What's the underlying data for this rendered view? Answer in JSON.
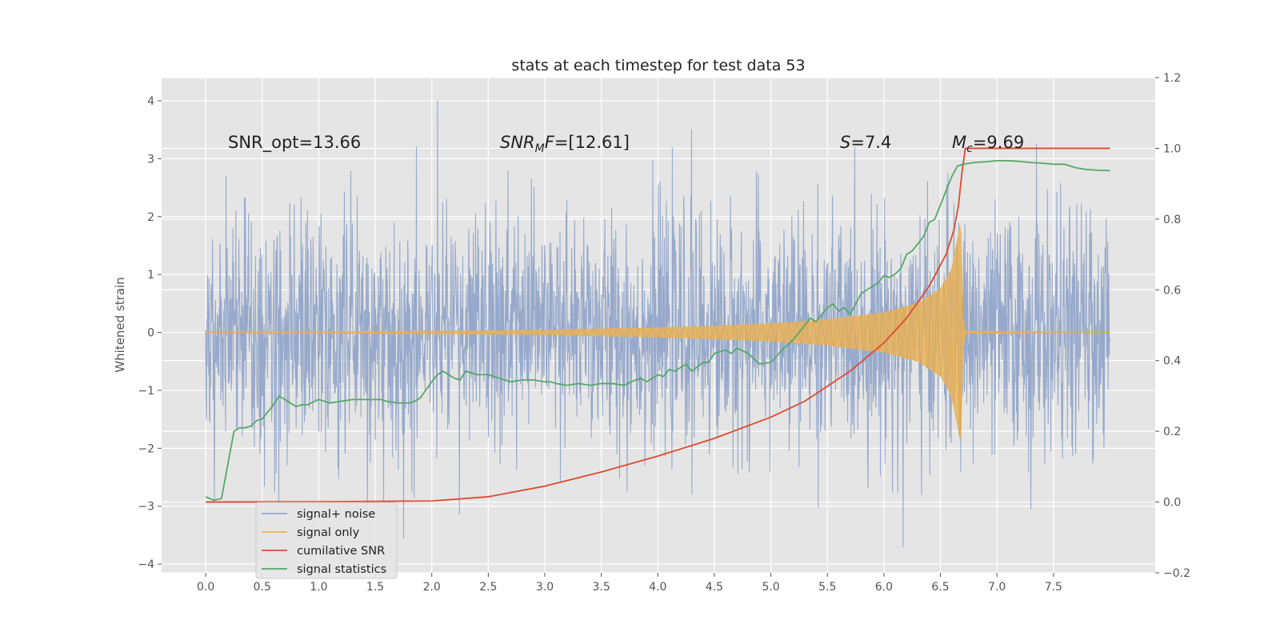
{
  "chart_data": {
    "type": "line",
    "title": "stats at each timestep for test data 53",
    "xlabel": "",
    "ylabel": "Whitened strain",
    "y2label": "",
    "xlim": [
      -0.39,
      8.4
    ],
    "ylim": [
      -4.15,
      4.4
    ],
    "y2lim": [
      -0.2,
      1.2
    ],
    "x_ticks": [
      0.0,
      0.5,
      1.0,
      1.5,
      2.0,
      2.5,
      3.0,
      3.5,
      4.0,
      4.5,
      5.0,
      5.5,
      6.0,
      6.5,
      7.0,
      7.5
    ],
    "x_tick_labels": [
      "0.0",
      "0.5",
      "1.0",
      "1.5",
      "2.0",
      "2.5",
      "3.0",
      "3.5",
      "4.0",
      "4.5",
      "5.0",
      "5.5",
      "6.0",
      "6.5",
      "7.0",
      "7.5"
    ],
    "y_ticks": [
      -4,
      -3,
      -2,
      -1,
      0,
      1,
      2,
      3,
      4
    ],
    "y_tick_labels": [
      "−4",
      "−3",
      "−2",
      "−1",
      "0",
      "1",
      "2",
      "3",
      "4"
    ],
    "y2_ticks": [
      -0.2,
      0.0,
      0.2,
      0.4,
      0.6,
      0.8,
      1.0,
      1.2
    ],
    "y2_tick_labels": [
      "−0.2",
      "0.0",
      "0.2",
      "0.4",
      "0.6",
      "0.8",
      "1.0",
      "1.2"
    ],
    "grid": true,
    "legend_position": "lower-left",
    "annotations": [
      {
        "kind": "plain",
        "text": "SNR_opt=13.66"
      },
      {
        "kind": "sub",
        "main": "SNR",
        "sub": "M",
        "rest": "F=[12.61]"
      },
      {
        "kind": "italic",
        "main": "S",
        "rest": "=7.4"
      },
      {
        "kind": "sub",
        "main": "M",
        "sub": "c",
        "rest": "=9.69"
      }
    ],
    "series": [
      {
        "name": "signal+ noise",
        "axis": "left",
        "color": "#97a9cb",
        "x_range": [
          0.0,
          8.0
        ],
        "y_range": [
          -3.7,
          4.0
        ],
        "peaks": [
          {
            "x": 2.05,
            "y": 4.0
          },
          {
            "x": 4.3,
            "y": 3.5
          },
          {
            "x": 7.35,
            "y": 3.25
          },
          {
            "x": 1.75,
            "y": -3.55
          },
          {
            "x": 6.17,
            "y": -3.7
          },
          {
            "x": 7.3,
            "y": -3.05
          }
        ]
      },
      {
        "name": "signal only",
        "axis": "left",
        "color": "#e8b45e",
        "x": [
          0.0,
          1.0,
          2.0,
          3.0,
          4.0,
          4.5,
          5.0,
          5.5,
          6.0,
          6.3,
          6.5,
          6.6,
          6.68,
          6.7,
          6.72,
          8.0
        ],
        "envelope": [
          0.01,
          0.01,
          0.02,
          0.04,
          0.08,
          0.11,
          0.15,
          0.22,
          0.34,
          0.5,
          0.75,
          1.1,
          1.9,
          0.3,
          0.02,
          0.0
        ]
      },
      {
        "name": "cumilative SNR",
        "axis": "right",
        "color": "#dd4b2f",
        "x": [
          0.0,
          1.0,
          2.0,
          2.5,
          3.0,
          3.5,
          4.0,
          4.5,
          5.0,
          5.3,
          5.7,
          6.0,
          6.2,
          6.4,
          6.55,
          6.62,
          6.66,
          6.69,
          6.72,
          7.0,
          7.5,
          8.0
        ],
        "y": [
          0.0,
          0.001,
          0.003,
          0.015,
          0.045,
          0.085,
          0.13,
          0.18,
          0.24,
          0.285,
          0.37,
          0.45,
          0.52,
          0.61,
          0.7,
          0.77,
          0.84,
          0.93,
          1.0,
          1.0,
          1.0,
          1.0
        ]
      },
      {
        "name": "signal statistics",
        "axis": "right",
        "color": "#55a868",
        "x": [
          0.0,
          0.07,
          0.14,
          0.25,
          0.3,
          0.35,
          0.4,
          0.45,
          0.5,
          0.6,
          0.65,
          0.7,
          0.8,
          0.85,
          0.9,
          1.0,
          1.05,
          1.1,
          1.2,
          1.3,
          1.4,
          1.5,
          1.55,
          1.6,
          1.7,
          1.8,
          1.85,
          1.9,
          2.0,
          2.05,
          2.1,
          2.2,
          2.25,
          2.3,
          2.4,
          2.5,
          2.6,
          2.7,
          2.8,
          2.9,
          3.0,
          3.05,
          3.1,
          3.2,
          3.3,
          3.4,
          3.5,
          3.6,
          3.7,
          3.8,
          3.85,
          3.9,
          4.0,
          4.05,
          4.1,
          4.15,
          4.25,
          4.3,
          4.4,
          4.45,
          4.5,
          4.6,
          4.65,
          4.7,
          4.8,
          4.9,
          5.0,
          5.1,
          5.2,
          5.3,
          5.35,
          5.4,
          5.5,
          5.55,
          5.6,
          5.65,
          5.7,
          5.8,
          5.85,
          5.9,
          5.95,
          6.0,
          6.05,
          6.1,
          6.15,
          6.2,
          6.25,
          6.3,
          6.35,
          6.4,
          6.45,
          6.5,
          6.55,
          6.6,
          6.65,
          6.7,
          6.8,
          6.9,
          7.0,
          7.1,
          7.2,
          7.3,
          7.4,
          7.5,
          7.6,
          7.7,
          7.8,
          7.9,
          8.0
        ],
        "y": [
          0.015,
          0.005,
          0.01,
          0.2,
          0.21,
          0.21,
          0.215,
          0.23,
          0.235,
          0.275,
          0.3,
          0.29,
          0.27,
          0.275,
          0.275,
          0.29,
          0.285,
          0.28,
          0.285,
          0.29,
          0.29,
          0.29,
          0.29,
          0.285,
          0.28,
          0.28,
          0.285,
          0.295,
          0.34,
          0.36,
          0.37,
          0.35,
          0.345,
          0.37,
          0.36,
          0.36,
          0.35,
          0.34,
          0.345,
          0.345,
          0.34,
          0.34,
          0.335,
          0.33,
          0.335,
          0.33,
          0.335,
          0.335,
          0.33,
          0.345,
          0.35,
          0.34,
          0.36,
          0.355,
          0.375,
          0.37,
          0.39,
          0.37,
          0.395,
          0.395,
          0.42,
          0.43,
          0.42,
          0.435,
          0.42,
          0.39,
          0.395,
          0.43,
          0.46,
          0.5,
          0.52,
          0.51,
          0.55,
          0.56,
          0.54,
          0.55,
          0.53,
          0.59,
          0.6,
          0.61,
          0.62,
          0.64,
          0.635,
          0.645,
          0.66,
          0.7,
          0.71,
          0.73,
          0.75,
          0.79,
          0.8,
          0.84,
          0.88,
          0.92,
          0.95,
          0.955,
          0.96,
          0.962,
          0.965,
          0.965,
          0.963,
          0.96,
          0.958,
          0.955,
          0.955,
          0.945,
          0.94,
          0.938,
          0.937
        ]
      }
    ]
  }
}
